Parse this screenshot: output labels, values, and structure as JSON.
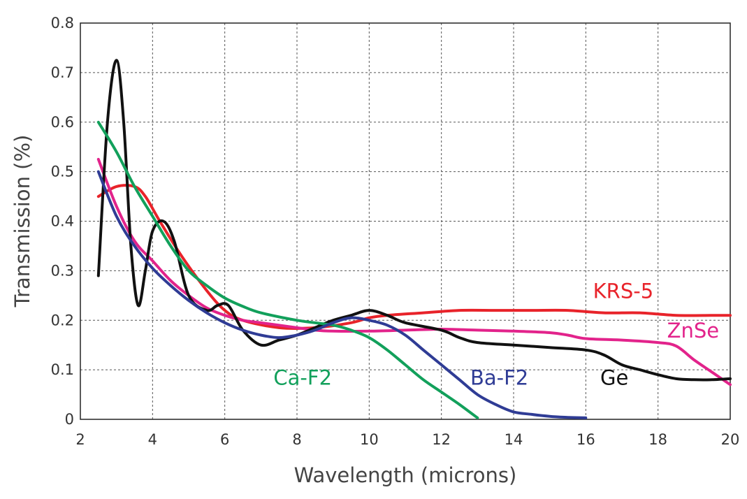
{
  "chart_data": {
    "type": "line",
    "title": "",
    "xlabel": "Wavelength (microns)",
    "ylabel": "Transmission (%)",
    "xlim": [
      2,
      20
    ],
    "ylim": [
      0,
      0.8
    ],
    "xticks": [
      "2",
      "4",
      "6",
      "8",
      "10",
      "12",
      "14",
      "16",
      "18",
      "20"
    ],
    "yticks": [
      "0",
      "0.1",
      "0.2",
      "0.3",
      "0.4",
      "0.5",
      "0.6",
      "0.7",
      "0.8"
    ],
    "grid": true,
    "series": [
      {
        "name": "KRS-5",
        "color": "#e8232a",
        "x": [
          2.5,
          3.0,
          3.5,
          3.8,
          4.2,
          4.8,
          5.5,
          6.0,
          6.5,
          7.5,
          8.5,
          9.5,
          10.0,
          10.5,
          11.5,
          12.5,
          13.5,
          14.5,
          15.5,
          16.5,
          17.5,
          18.5,
          19.5,
          20.0
        ],
        "y": [
          0.45,
          0.47,
          0.47,
          0.45,
          0.4,
          0.33,
          0.26,
          0.22,
          0.2,
          0.185,
          0.185,
          0.195,
          0.205,
          0.21,
          0.215,
          0.22,
          0.22,
          0.22,
          0.22,
          0.215,
          0.215,
          0.21,
          0.21,
          0.21
        ]
      },
      {
        "name": "ZnSe",
        "color": "#e2238b",
        "x": [
          2.5,
          3.0,
          3.5,
          4.0,
          4.5,
          5.0,
          5.5,
          6.0,
          6.5,
          7.0,
          7.5,
          8.0,
          8.5,
          9.0,
          10.0,
          11.0,
          12.0,
          13.0,
          14.0,
          15.0,
          15.5,
          16.0,
          17.0,
          18.0,
          18.5,
          19.0,
          19.5,
          20.0
        ],
        "y": [
          0.525,
          0.43,
          0.36,
          0.32,
          0.28,
          0.25,
          0.225,
          0.21,
          0.2,
          0.195,
          0.19,
          0.185,
          0.18,
          0.178,
          0.178,
          0.18,
          0.182,
          0.18,
          0.178,
          0.175,
          0.17,
          0.163,
          0.16,
          0.155,
          0.148,
          0.12,
          0.095,
          0.07
        ]
      },
      {
        "name": "Ge",
        "color": "#111111",
        "x": [
          2.5,
          2.75,
          3.0,
          3.2,
          3.4,
          3.6,
          3.8,
          4.0,
          4.3,
          4.6,
          5.0,
          5.5,
          5.8,
          6.1,
          6.5,
          7.0,
          7.5,
          8.0,
          8.5,
          9.0,
          9.5,
          10.0,
          10.5,
          11.0,
          12.0,
          12.5,
          13.0,
          14.0,
          15.0,
          16.0,
          16.5,
          17.0,
          17.5,
          18.0,
          18.5,
          19.0,
          19.5,
          20.0
        ],
        "y": [
          0.29,
          0.6,
          0.725,
          0.6,
          0.35,
          0.23,
          0.3,
          0.38,
          0.4,
          0.36,
          0.25,
          0.22,
          0.23,
          0.23,
          0.18,
          0.15,
          0.16,
          0.17,
          0.185,
          0.2,
          0.21,
          0.22,
          0.21,
          0.195,
          0.18,
          0.165,
          0.155,
          0.15,
          0.145,
          0.14,
          0.13,
          0.11,
          0.1,
          0.09,
          0.082,
          0.08,
          0.08,
          0.082
        ]
      },
      {
        "name": "Ca-F2",
        "color": "#12a05b",
        "x": [
          2.5,
          3.0,
          3.5,
          4.0,
          4.5,
          5.0,
          5.5,
          6.0,
          6.5,
          7.0,
          8.0,
          9.0,
          9.5,
          10.0,
          10.5,
          11.0,
          11.5,
          12.0,
          12.5,
          13.0
        ],
        "y": [
          0.6,
          0.54,
          0.47,
          0.41,
          0.35,
          0.3,
          0.27,
          0.245,
          0.228,
          0.215,
          0.2,
          0.19,
          0.18,
          0.165,
          0.14,
          0.11,
          0.08,
          0.055,
          0.03,
          0.003
        ]
      },
      {
        "name": "Ba-F2",
        "color": "#2f3c95",
        "x": [
          2.5,
          3.0,
          3.5,
          4.0,
          4.5,
          5.0,
          5.5,
          6.0,
          6.5,
          7.0,
          7.5,
          8.0,
          8.5,
          9.0,
          9.5,
          10.0,
          10.5,
          11.0,
          11.5,
          12.0,
          12.5,
          13.0,
          13.5,
          14.0,
          14.5,
          15.0,
          15.5,
          16.0
        ],
        "y": [
          0.5,
          0.41,
          0.35,
          0.305,
          0.27,
          0.24,
          0.215,
          0.195,
          0.18,
          0.17,
          0.165,
          0.17,
          0.18,
          0.195,
          0.205,
          0.2,
          0.19,
          0.17,
          0.14,
          0.11,
          0.08,
          0.05,
          0.03,
          0.015,
          0.01,
          0.006,
          0.004,
          0.003
        ]
      }
    ],
    "labels": [
      {
        "text": "KRS-5",
        "color": "#e8232a",
        "x": 16.2,
        "y": 0.245
      },
      {
        "text": "ZnSe",
        "color": "#e2238b",
        "x": 18.25,
        "y": 0.165
      },
      {
        "text": "Ge",
        "color": "#111111",
        "x": 16.4,
        "y": 0.07
      },
      {
        "text": "Ca-F2",
        "color": "#12a05b",
        "x": 7.35,
        "y": 0.07
      },
      {
        "text": "Ba-F2",
        "color": "#2f3c95",
        "x": 12.8,
        "y": 0.07
      }
    ]
  }
}
